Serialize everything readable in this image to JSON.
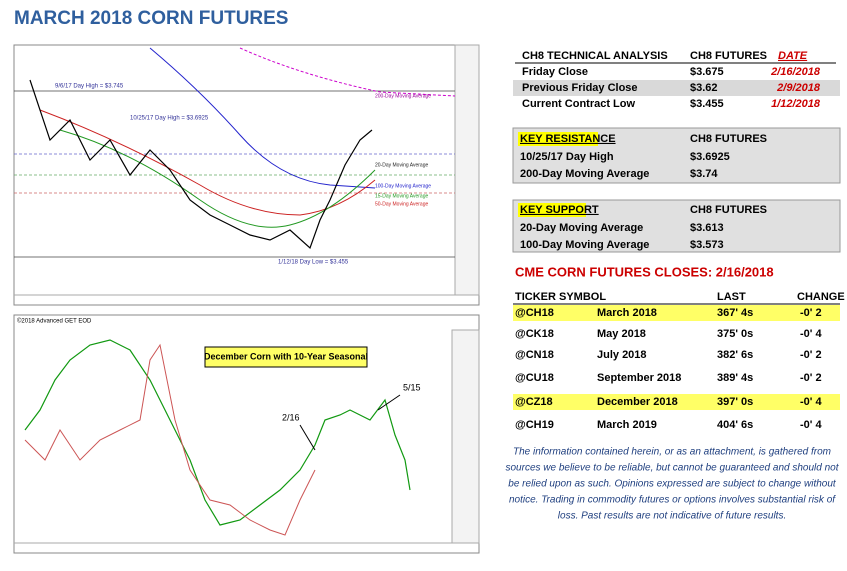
{
  "header": {
    "title": "MARCH 2018 CORN FUTURES"
  },
  "chart_top": {
    "annotations": [
      "9/6/17 Day High = $3.745",
      "10/25/17 Day High = $3.6925",
      "200-Day Moving Average",
      "20-Day Moving Average",
      "100-Day Moving Average",
      "15-Day Moving Average",
      "50-Day Moving Average",
      "1/12/18 Day Low = $3.455"
    ]
  },
  "chart_bottom": {
    "source": "©2018 Advanced GET EOD",
    "title": "December Corn with 10-Year Seasonal",
    "markers": [
      "2/16",
      "5/15"
    ]
  },
  "technical": {
    "headers": [
      "CH8 TECHNICAL ANALYSIS",
      "CH8 FUTURES",
      "DATE"
    ],
    "rows": [
      [
        "Friday Close",
        "$3.675",
        "2/16/2018"
      ],
      [
        "Previous Friday Close",
        "$3.62",
        "2/9/2018"
      ],
      [
        "Current Contract Low",
        "$3.455",
        "1/12/2018"
      ]
    ]
  },
  "resistance": {
    "headers": [
      "KEY RESISTANCE",
      "CH8 FUTURES"
    ],
    "rows": [
      [
        "10/25/17 Day High",
        "$3.6925"
      ],
      [
        "200-Day Moving Average",
        "$3.74"
      ]
    ]
  },
  "support": {
    "headers": [
      "KEY SUPPORT",
      "CH8 FUTURES"
    ],
    "rows": [
      [
        "20-Day Moving Average",
        "$3.613"
      ],
      [
        "100-Day Moving Average",
        "$3.573"
      ]
    ]
  },
  "closes": {
    "title": "CME CORN FUTURES CLOSES:  2/16/2018",
    "headers": {
      "ticker": "TICKER SYMBOL",
      "last": "LAST",
      "change": "CHANGE"
    },
    "rows": [
      [
        "@CH18",
        "March 2018",
        "367' 4s",
        "-0' 2"
      ],
      [
        "@CK18",
        "May 2018",
        "375' 0s",
        "-0' 4"
      ],
      [
        "@CN18",
        "July 2018",
        "382' 6s",
        "-0' 2"
      ],
      [
        "@CU18",
        "September 2018",
        "389' 4s",
        "-0' 2"
      ],
      [
        "@CZ18",
        "December 2018",
        "397' 0s",
        "-0' 4"
      ],
      [
        "@CH19",
        "March 2019",
        "404' 6s",
        "-0' 4"
      ]
    ],
    "highlight": [
      true,
      false,
      false,
      false,
      true,
      false
    ]
  },
  "disclaimer": [
    "The information contained herein, or as an attachment, is gathered from",
    "sources we believe to be reliable, but cannot be guaranteed and should not",
    "be relied upon as such. Opinions expressed are subject to change without",
    "notice. Trading in commodity futures or options involves substantial risk of",
    "loss. Past results are not indicative of future results."
  ]
}
